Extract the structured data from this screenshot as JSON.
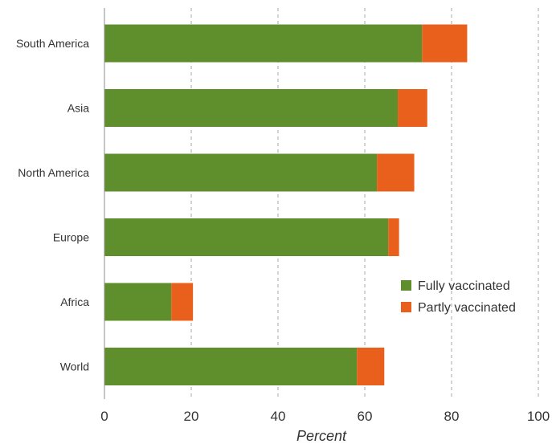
{
  "chart_data": {
    "type": "bar",
    "orientation": "horizontal",
    "stacked": true,
    "categories": [
      "South America",
      "Asia",
      "North America",
      "Europe",
      "Africa",
      "World"
    ],
    "series": [
      {
        "name": "Fully vaccinated",
        "color": "#5e8f2c",
        "values": [
          73.2,
          67.6,
          62.8,
          65.4,
          15.4,
          58.2
        ]
      },
      {
        "name": "Partly vaccinated",
        "color": "#e8601c",
        "values": [
          10.4,
          6.8,
          8.6,
          2.5,
          5.0,
          6.3
        ]
      }
    ],
    "xlabel": "Percent",
    "xlim": [
      0,
      100
    ],
    "xticks": [
      "0",
      "20",
      "40",
      "60",
      "80",
      "100"
    ],
    "grid": "vertical dashed",
    "legend_position": "right, lower-middle"
  }
}
